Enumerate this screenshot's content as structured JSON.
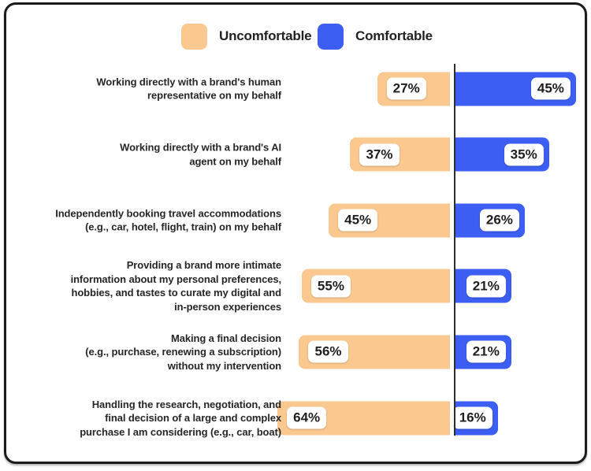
{
  "colors": {
    "uncomfortable": "#FBC890",
    "comfortable": "#3D5EF3",
    "axis": "#2E2E2E",
    "category_text": "#262626",
    "value_text": "#1E1E1E",
    "value_box_bg": "#FFFFFF",
    "card_border": "#1B1B1B",
    "background": "#FFFFFF"
  },
  "legend": {
    "items": [
      {
        "label": "Uncomfortable",
        "color": "#FBC890"
      },
      {
        "label": "Comfortable",
        "color": "#3D5EF3"
      }
    ]
  },
  "chart_data": {
    "type": "bar",
    "orientation": "horizontal-diverging",
    "value_format": "percent",
    "legend_position": "top",
    "grid": false,
    "axis": {
      "center_line": true,
      "center_value": 0
    },
    "categories": [
      "Working directly with a brand's human\nrepresentative on my behalf",
      "Working directly with a brand's AI\nagent on my behalf",
      "Independently booking travel accommodations\n(e.g., car, hotel, flight, train) on my behalf",
      "Providing a brand more intimate\ninformation about my personal preferences,\nhobbies, and tastes to curate my digital and\nin-person experiences",
      "Making a final decision\n(e.g., purchase, renewing a subscription)\nwithout my intervention",
      "Handling the research, negotiation, and\nfinal decision of a large and complex\npurchase I am considering (e.g., car, boat)"
    ],
    "series": [
      {
        "name": "Uncomfortable",
        "color": "#FBC890",
        "values": [
          27,
          37,
          45,
          55,
          56,
          64
        ]
      },
      {
        "name": "Comfortable",
        "color": "#3D5EF3",
        "values": [
          45,
          35,
          26,
          21,
          21,
          16
        ]
      }
    ]
  }
}
